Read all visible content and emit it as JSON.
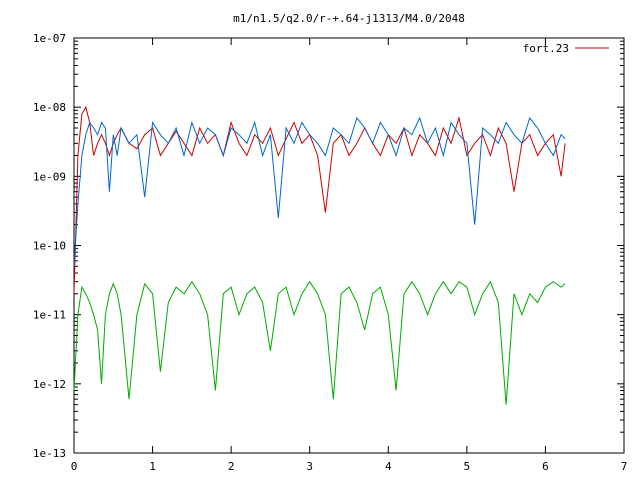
{
  "chart_data": {
    "type": "line",
    "title": "m1/n1.5/q2.0/r-+.64-j1313/M4.0/2048",
    "xlabel": "",
    "ylabel": "",
    "xlim": [
      0,
      7
    ],
    "ylim": [
      1e-13,
      1e-07
    ],
    "yscale": "log",
    "grid": false,
    "legend": "top-right",
    "x_ticks": [
      "0",
      "1",
      "2",
      "3",
      "4",
      "5",
      "6",
      "7"
    ],
    "y_ticks": [
      "1e-13",
      "1e-12",
      "1e-11",
      "1e-10",
      "1e-09",
      "1e-08",
      "1e-07"
    ],
    "series": [
      {
        "name": "fort.23",
        "color": "#cc0000",
        "x": [
          0.0,
          0.05,
          0.1,
          0.15,
          0.2,
          0.25,
          0.3,
          0.35,
          0.4,
          0.45,
          0.5,
          0.55,
          0.6,
          0.7,
          0.8,
          0.9,
          1.0,
          1.1,
          1.2,
          1.3,
          1.4,
          1.5,
          1.6,
          1.7,
          1.8,
          1.9,
          2.0,
          2.1,
          2.2,
          2.3,
          2.4,
          2.5,
          2.6,
          2.7,
          2.8,
          2.9,
          3.0,
          3.1,
          3.2,
          3.3,
          3.4,
          3.5,
          3.6,
          3.7,
          3.8,
          3.9,
          4.0,
          4.1,
          4.2,
          4.3,
          4.4,
          4.5,
          4.6,
          4.7,
          4.8,
          4.9,
          5.0,
          5.1,
          5.2,
          5.3,
          5.4,
          5.5,
          5.6,
          5.7,
          5.8,
          5.9,
          6.0,
          6.1,
          6.2,
          6.25
        ],
        "y": [
          2e-11,
          2e-09,
          8e-09,
          1e-08,
          6e-09,
          2e-09,
          3e-09,
          4e-09,
          3e-09,
          2e-09,
          3e-09,
          4e-09,
          5e-09,
          3e-09,
          2.5e-09,
          4e-09,
          5e-09,
          2e-09,
          3e-09,
          4.5e-09,
          3e-09,
          2e-09,
          5e-09,
          3e-09,
          4e-09,
          2e-09,
          6e-09,
          3e-09,
          2e-09,
          4e-09,
          3e-09,
          5e-09,
          2e-09,
          3.5e-09,
          6e-09,
          3e-09,
          4e-09,
          2e-09,
          3e-10,
          3e-09,
          4e-09,
          2e-09,
          3e-09,
          5e-09,
          3e-09,
          2e-09,
          4e-09,
          3e-09,
          5e-09,
          2e-09,
          4e-09,
          3e-09,
          2e-09,
          5e-09,
          3e-09,
          7e-09,
          2e-09,
          3e-09,
          4e-09,
          2e-09,
          5e-09,
          3e-09,
          6e-10,
          3e-09,
          4e-09,
          2e-09,
          3e-09,
          4e-09,
          1e-09,
          3e-09
        ]
      },
      {
        "color": "#0066cc",
        "x": [
          0.0,
          0.05,
          0.1,
          0.15,
          0.2,
          0.25,
          0.3,
          0.35,
          0.4,
          0.45,
          0.5,
          0.55,
          0.6,
          0.7,
          0.8,
          0.9,
          1.0,
          1.1,
          1.2,
          1.3,
          1.4,
          1.5,
          1.6,
          1.7,
          1.8,
          1.9,
          2.0,
          2.1,
          2.2,
          2.3,
          2.4,
          2.5,
          2.6,
          2.7,
          2.8,
          2.9,
          3.0,
          3.1,
          3.2,
          3.3,
          3.4,
          3.5,
          3.6,
          3.7,
          3.8,
          3.9,
          4.0,
          4.1,
          4.2,
          4.3,
          4.4,
          4.5,
          4.6,
          4.7,
          4.8,
          4.9,
          5.0,
          5.1,
          5.2,
          5.3,
          5.4,
          5.5,
          5.6,
          5.7,
          5.8,
          5.9,
          6.0,
          6.1,
          6.2,
          6.25
        ],
        "y": [
          5e-11,
          4e-10,
          2e-09,
          4e-09,
          6e-09,
          5e-09,
          4e-09,
          6e-09,
          5e-09,
          6e-10,
          4e-09,
          2e-09,
          5e-09,
          3e-09,
          4e-09,
          5e-10,
          6e-09,
          4e-09,
          3e-09,
          5e-09,
          2e-09,
          6e-09,
          3e-09,
          5e-09,
          4e-09,
          2e-09,
          5e-09,
          4e-09,
          3e-09,
          6e-09,
          2e-09,
          4e-09,
          2.5e-10,
          5e-09,
          3e-09,
          6e-09,
          4e-09,
          3e-09,
          2e-09,
          5e-09,
          4e-09,
          3e-09,
          7e-09,
          5e-09,
          3e-09,
          6e-09,
          4e-09,
          2e-09,
          5e-09,
          4e-09,
          7e-09,
          3e-09,
          5e-09,
          2e-09,
          6e-09,
          4e-09,
          3e-09,
          2e-10,
          5e-09,
          4e-09,
          3e-09,
          6e-09,
          4e-09,
          3e-09,
          7e-09,
          5e-09,
          3e-09,
          2e-09,
          4e-09,
          3.5e-09
        ]
      },
      {
        "color": "#00aa00",
        "x": [
          0.0,
          0.05,
          0.1,
          0.15,
          0.2,
          0.25,
          0.3,
          0.35,
          0.4,
          0.45,
          0.5,
          0.55,
          0.6,
          0.7,
          0.8,
          0.9,
          1.0,
          1.1,
          1.2,
          1.3,
          1.4,
          1.5,
          1.6,
          1.7,
          1.8,
          1.9,
          2.0,
          2.1,
          2.2,
          2.3,
          2.4,
          2.5,
          2.6,
          2.7,
          2.8,
          2.9,
          3.0,
          3.1,
          3.2,
          3.3,
          3.4,
          3.5,
          3.6,
          3.7,
          3.8,
          3.9,
          4.0,
          4.1,
          4.2,
          4.3,
          4.4,
          4.5,
          4.6,
          4.7,
          4.8,
          4.9,
          5.0,
          5.1,
          5.2,
          5.3,
          5.4,
          5.5,
          5.6,
          5.7,
          5.8,
          5.9,
          6.0,
          6.1,
          6.2,
          6.25
        ],
        "y": [
          8e-13,
          1e-11,
          2.5e-11,
          2e-11,
          1.5e-11,
          1e-11,
          6e-12,
          1e-12,
          1e-11,
          2e-11,
          2.8e-11,
          2e-11,
          1e-11,
          6e-13,
          1e-11,
          2.8e-11,
          2e-11,
          1.5e-12,
          1.5e-11,
          2.5e-11,
          2e-11,
          3e-11,
          2e-11,
          1e-11,
          8e-13,
          2e-11,
          2.5e-11,
          1e-11,
          2e-11,
          2.5e-11,
          1.5e-11,
          3e-12,
          2e-11,
          2.5e-11,
          1e-11,
          2e-11,
          3e-11,
          2e-11,
          1e-11,
          6e-13,
          2e-11,
          2.5e-11,
          1.5e-11,
          6e-12,
          2e-11,
          2.5e-11,
          1e-11,
          8e-13,
          2e-11,
          3e-11,
          2e-11,
          1e-11,
          2e-11,
          3e-11,
          2e-11,
          3e-11,
          2.5e-11,
          1e-11,
          2e-11,
          3e-11,
          1.5e-11,
          5e-13,
          2e-11,
          1e-11,
          2e-11,
          1.5e-11,
          2.5e-11,
          3e-11,
          2.5e-11,
          2.8e-11
        ]
      }
    ]
  }
}
